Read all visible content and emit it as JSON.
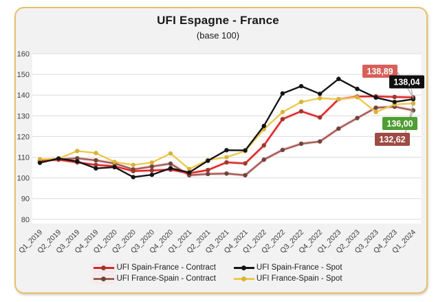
{
  "card": {
    "title": "UFI Espagne - France",
    "subtitle": "(base 100)"
  },
  "chart_data": {
    "type": "line",
    "title": "UFI Espagne - France",
    "subtitle": "(base 100)",
    "categories": [
      "Q1_2019",
      "Q2_2019",
      "Q3_2019",
      "Q4_2019",
      "Q1_2020",
      "Q2_2020",
      "Q3_2020",
      "Q4_2020",
      "Q1_2021",
      "Q2_2021",
      "Q3_2021",
      "Q4_2021",
      "Q1_2022",
      "Q2_2022",
      "Q3_2022",
      "Q4_2022",
      "Q1_2023",
      "Q2_2023",
      "Q3_2023",
      "Q4_2023",
      "Q1_2024"
    ],
    "series": [
      {
        "name": "UFI Spain-France - Contract",
        "color": "#d92521",
        "marker": "#9a392a",
        "glow": "#ffc9d6",
        "values": [
          108.2,
          108.8,
          107.5,
          106.3,
          105.6,
          103.3,
          103.6,
          104.0,
          102.2,
          103.8,
          107.5,
          107.0,
          115.7,
          128.4,
          132.2,
          129.2,
          138.0,
          139.3,
          139.4,
          139.1,
          138.89
        ],
        "end_label": "138,89",
        "label_bg": "#d7605a"
      },
      {
        "name": "UFI Spain-France - Spot",
        "color": "#141414",
        "marker": "#141414",
        "values": [
          107.3,
          109.4,
          108.0,
          104.6,
          105.2,
          100.4,
          101.5,
          104.7,
          102.6,
          108.3,
          113.4,
          113.3,
          125.1,
          140.8,
          144.3,
          140.6,
          147.8,
          143.0,
          138.8,
          136.7,
          138.04
        ],
        "end_label": "138,04",
        "label_bg": "#0f0f0f"
      },
      {
        "name": "UFI France-Spain - Contract",
        "color": "#9a5d51",
        "marker": "#6d453b",
        "glow": "#ffc9d6",
        "values": [
          108.4,
          109.0,
          109.5,
          108.5,
          107.0,
          104.1,
          105.5,
          106.9,
          101.3,
          101.9,
          102.1,
          101.3,
          108.8,
          113.5,
          116.5,
          117.6,
          123.8,
          128.9,
          133.9,
          134.4,
          132.62
        ],
        "end_label": "132,62",
        "label_bg": "#9d4b43"
      },
      {
        "name": "UFI France-Spain - Spot",
        "color": "#ecc94b",
        "marker": "#d8b23a",
        "values": [
          109.0,
          109.3,
          113.0,
          112.0,
          107.7,
          106.3,
          107.4,
          111.8,
          104.3,
          108.6,
          110.0,
          113.0,
          123.5,
          131.8,
          136.7,
          138.5,
          138.0,
          139.0,
          131.8,
          135.5,
          136.0
        ],
        "end_label": "136,00",
        "label_bg": "#4f9e33"
      }
    ],
    "ylim": [
      80,
      160
    ],
    "yticks": [
      160,
      150,
      140,
      130,
      120,
      110,
      100,
      90,
      80
    ],
    "grid": true,
    "legend_position": "bottom"
  },
  "colors": {
    "card_bg": "#f2f2f2",
    "card_border": "#e5c06c",
    "plot_bg": "#ffffff",
    "gridline": "#dcdcdc",
    "axis_text": "#3c3c3c",
    "callout": "#a8a8a8"
  }
}
